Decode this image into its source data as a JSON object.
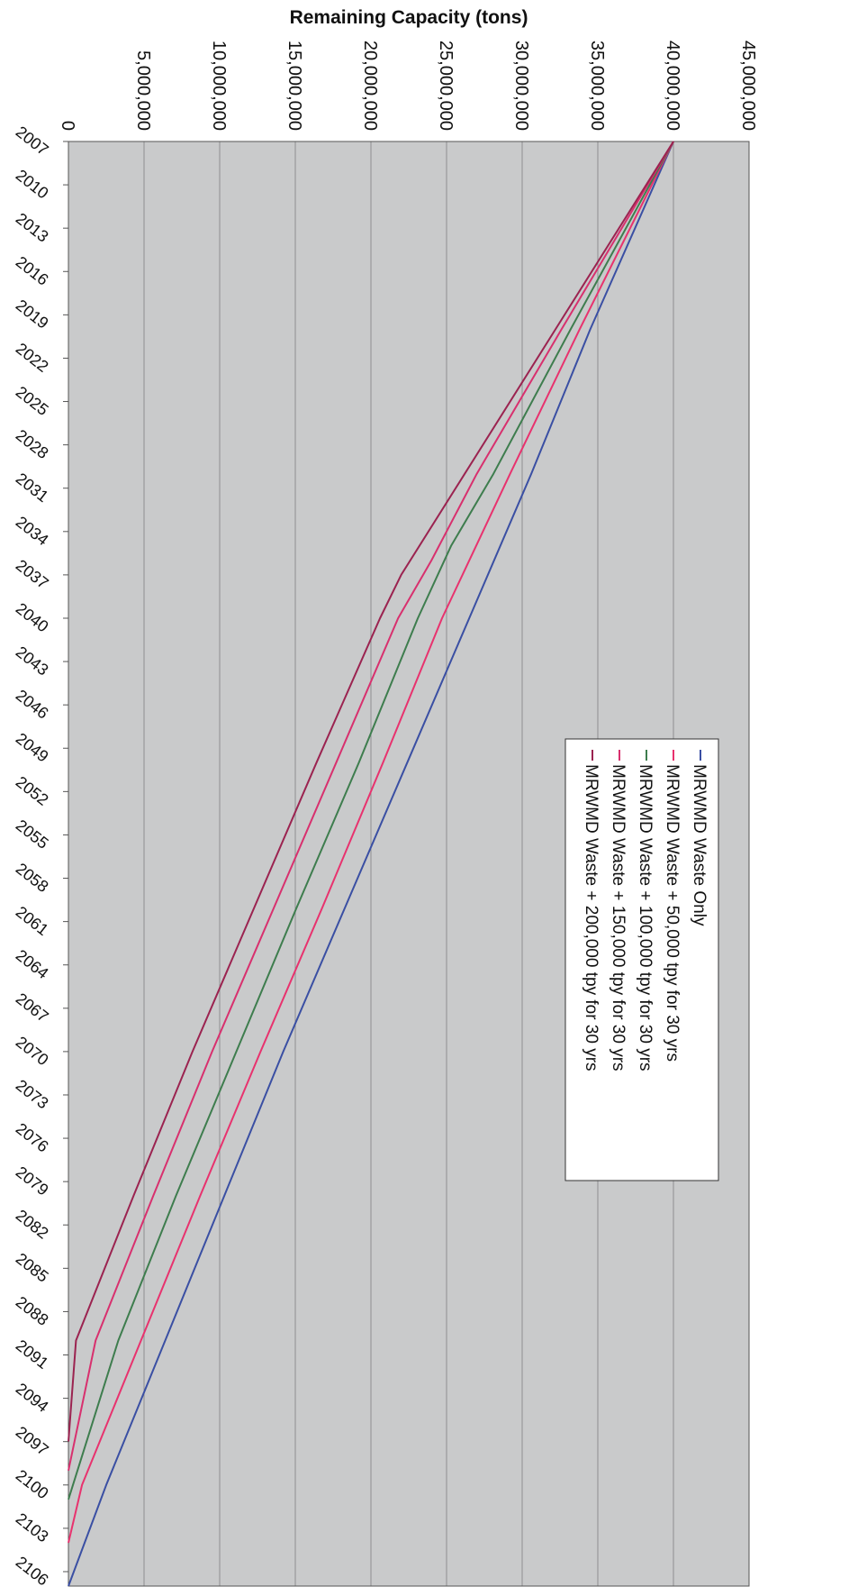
{
  "chart_data": {
    "type": "line",
    "title": "",
    "ylabel": "Remaining Capacity (tons)",
    "xlabel": "",
    "ylim": [
      0,
      45000000
    ],
    "y_tick_labels": [
      "0",
      "5,000,000",
      "10,000,000",
      "15,000,000",
      "20,000,000",
      "25,000,000",
      "30,000,000",
      "35,000,000",
      "40,000,000",
      "45,000,000"
    ],
    "x_tick_labels": [
      "2007",
      "2010",
      "2013",
      "2016",
      "2019",
      "2022",
      "2025",
      "2028",
      "2031",
      "2034",
      "2037",
      "2040",
      "2043",
      "2046",
      "2049",
      "2052",
      "2055",
      "2058",
      "2061",
      "2064",
      "2067",
      "2070",
      "2073",
      "2076",
      "2079",
      "2082",
      "2085",
      "2088",
      "2091",
      "2094",
      "2097",
      "2100",
      "2103",
      "2106"
    ],
    "xlim": [
      2007,
      2107
    ],
    "grid": true,
    "legend_position": "top-right",
    "orientation": "rotated 90 degrees clockwise (x axis runs top to bottom, y axis runs right to left)",
    "plot_background": "#c9cacb",
    "gridline_color": "#8e8f90",
    "series": [
      {
        "name": "MRWMD Waste Only",
        "color": "#3a4fa3",
        "points": [
          [
            2007,
            40000000
          ],
          [
            2020,
            34500000
          ],
          [
            2030,
            30600000
          ],
          [
            2040,
            26500000
          ],
          [
            2050,
            22400000
          ],
          [
            2060,
            18300000
          ],
          [
            2070,
            14200000
          ],
          [
            2080,
            10300000
          ],
          [
            2090,
            6400000
          ],
          [
            2100,
            2500000
          ],
          [
            2107,
            0
          ]
        ]
      },
      {
        "name": "MRWMD Waste + 50,000 tpy for 30 yrs",
        "color": "#e8326e",
        "points": [
          [
            2007,
            40000000
          ],
          [
            2020,
            33800000
          ],
          [
            2030,
            29200000
          ],
          [
            2040,
            24700000
          ],
          [
            2050,
            20800000
          ],
          [
            2060,
            16800000
          ],
          [
            2070,
            12700000
          ],
          [
            2080,
            8700000
          ],
          [
            2090,
            4800000
          ],
          [
            2100,
            900000
          ],
          [
            2104,
            0
          ]
        ]
      },
      {
        "name": "MRWMD Waste + 100,000 tpy for 30 yrs",
        "color": "#3e7d4e",
        "points": [
          [
            2007,
            40000000
          ],
          [
            2020,
            33200000
          ],
          [
            2030,
            28100000
          ],
          [
            2035,
            25300000
          ],
          [
            2040,
            23100000
          ],
          [
            2050,
            19200000
          ],
          [
            2060,
            15100000
          ],
          [
            2070,
            11100000
          ],
          [
            2080,
            7100000
          ],
          [
            2090,
            3300000
          ],
          [
            2101,
            0
          ]
        ]
      },
      {
        "name": "MRWMD Waste + 150,000 tpy for 30 yrs",
        "color": "#d8306e",
        "points": [
          [
            2007,
            40000000
          ],
          [
            2020,
            32600000
          ],
          [
            2030,
            27000000
          ],
          [
            2036,
            24000000
          ],
          [
            2040,
            21800000
          ],
          [
            2050,
            17700000
          ],
          [
            2060,
            13600000
          ],
          [
            2070,
            9500000
          ],
          [
            2080,
            5600000
          ],
          [
            2090,
            1800000
          ],
          [
            2099,
            0
          ]
        ]
      },
      {
        "name": "MRWMD Waste + 200,000 tpy for 30 yrs",
        "color": "#9b2350",
        "points": [
          [
            2007,
            40000000
          ],
          [
            2020,
            32200000
          ],
          [
            2030,
            26200000
          ],
          [
            2037,
            22000000
          ],
          [
            2040,
            20600000
          ],
          [
            2050,
            16400000
          ],
          [
            2060,
            12300000
          ],
          [
            2070,
            8200000
          ],
          [
            2080,
            4300000
          ],
          [
            2090,
            500000
          ],
          [
            2097,
            0
          ]
        ]
      }
    ]
  }
}
